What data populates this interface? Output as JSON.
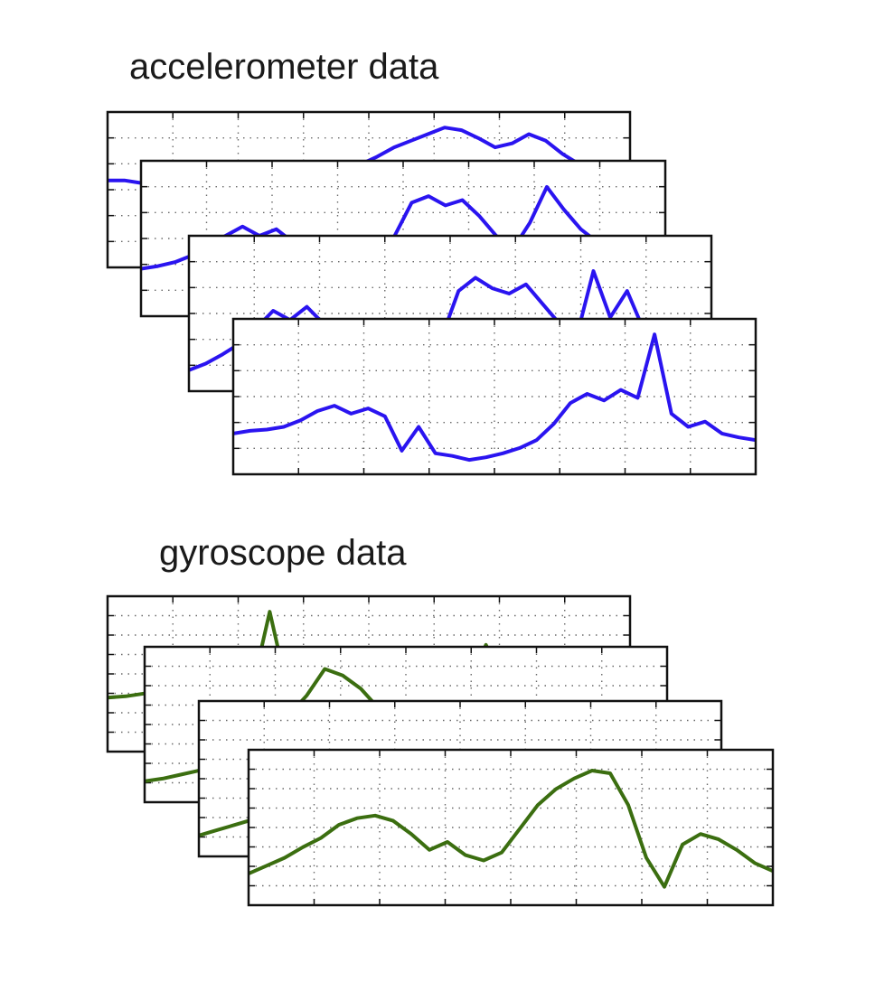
{
  "labels": {
    "accelerometer": "accelerometer data",
    "gyroscope": "gyroscope data"
  },
  "colors": {
    "accelerometer": "#2a14f0",
    "gyroscope": "#3b6e10",
    "frame": "#111111",
    "grid": "#6a6a6a"
  },
  "chart_data": [
    {
      "type": "line",
      "series": [
        {
          "values": [
            0.6,
            0.6,
            0.58,
            0.55,
            0.6,
            0.62,
            0.58,
            0.6,
            0.63,
            0.65,
            0.62,
            0.6,
            0.62,
            0.64,
            0.68,
            0.72,
            0.78,
            0.85,
            0.9,
            0.95,
            1.0,
            0.98,
            0.92,
            0.85,
            0.88,
            0.95,
            0.9,
            0.8,
            0.72,
            0.7,
            0.66,
            0.6
          ]
        },
        {
          "values": [
            0.3,
            0.32,
            0.35,
            0.4,
            0.48,
            0.55,
            0.62,
            0.55,
            0.6,
            0.5,
            0.38,
            0.35,
            0.3,
            0.32,
            0.4,
            0.55,
            0.8,
            0.85,
            0.78,
            0.82,
            0.7,
            0.55,
            0.45,
            0.65,
            0.92,
            0.75,
            0.6,
            0.5,
            0.45,
            0.4,
            0.42,
            0.4
          ]
        },
        {
          "values": [
            0.1,
            0.15,
            0.22,
            0.3,
            0.42,
            0.55,
            0.48,
            0.58,
            0.45,
            0.35,
            0.2,
            0.12,
            0.08,
            0.1,
            0.15,
            0.35,
            0.7,
            0.8,
            0.72,
            0.68,
            0.75,
            0.6,
            0.45,
            0.35,
            0.85,
            0.5,
            0.7,
            0.4,
            0.2,
            0.15,
            0.12,
            0.1
          ]
        },
        {
          "values": [
            0.25,
            0.27,
            0.28,
            0.3,
            0.35,
            0.42,
            0.46,
            0.4,
            0.44,
            0.38,
            0.12,
            0.3,
            0.1,
            0.08,
            0.05,
            0.07,
            0.1,
            0.14,
            0.2,
            0.32,
            0.48,
            0.55,
            0.5,
            0.58,
            0.52,
            1.0,
            0.4,
            0.3,
            0.34,
            0.25,
            0.22,
            0.2
          ]
        }
      ]
    },
    {
      "type": "line",
      "series": [
        {
          "values": [
            0.35,
            0.36,
            0.38,
            0.42,
            0.5,
            0.58,
            0.45,
            0.48,
            0.4,
            1.0,
            0.4,
            0.35,
            0.32,
            0.3,
            0.3,
            0.31,
            0.33,
            0.35,
            0.37,
            0.4,
            0.42,
            0.75,
            0.45,
            0.4,
            0.38,
            0.36,
            0.34,
            0.33,
            0.32,
            0.3
          ]
        },
        {
          "values": [
            0.1,
            0.12,
            0.15,
            0.18,
            0.22,
            0.28,
            0.35,
            0.45,
            0.6,
            0.75,
            0.95,
            0.9,
            0.8,
            0.65,
            0.55,
            0.48,
            0.45,
            0.42,
            0.4,
            0.38,
            0.36,
            0.7,
            0.4,
            0.32,
            0.28,
            0.25,
            0.22,
            0.2,
            0.18,
            0.15
          ]
        },
        {
          "values": [
            0.1,
            0.14,
            0.18,
            0.22,
            0.26,
            0.3,
            0.34,
            0.38,
            0.42,
            0.48,
            0.5,
            0.35,
            0.2,
            0.15,
            0.12,
            0.1,
            0.12,
            0.14,
            0.16,
            0.18,
            0.2,
            0.6,
            0.3,
            0.55,
            0.5,
            0.4,
            0.3,
            0.2,
            0.15,
            0.12
          ]
        },
        {
          "values": [
            0.18,
            0.24,
            0.3,
            0.38,
            0.45,
            0.55,
            0.6,
            0.62,
            0.58,
            0.48,
            0.36,
            0.42,
            0.32,
            0.28,
            0.34,
            0.52,
            0.7,
            0.82,
            0.9,
            0.96,
            0.94,
            0.7,
            0.3,
            0.08,
            0.4,
            0.48,
            0.44,
            0.36,
            0.26,
            0.2
          ]
        }
      ]
    }
  ]
}
